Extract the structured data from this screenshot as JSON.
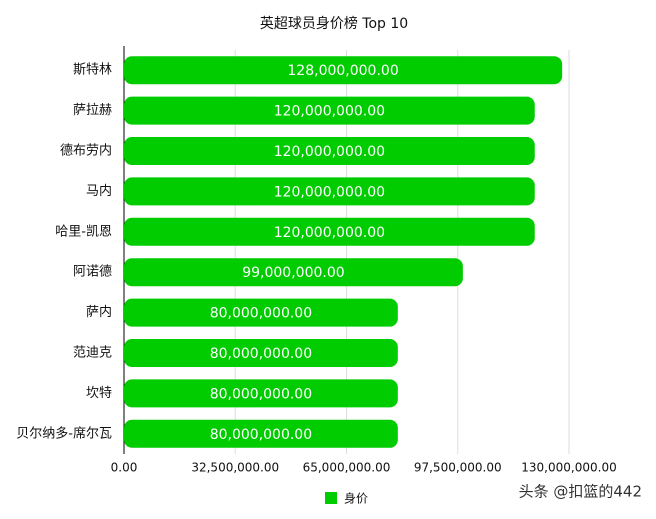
{
  "chart_data": {
    "type": "hbar",
    "title": "英超球员身价榜 Top 10",
    "categories": [
      "斯特林",
      "萨拉赫",
      "德布劳内",
      "马内",
      "哈里-凯恩",
      "阿诺德",
      "萨内",
      "范迪克",
      "坎特",
      "贝尔纳多-席尔瓦"
    ],
    "series": [
      {
        "name": "身价",
        "color": "#00cc00",
        "values": [
          128000000,
          120000000,
          120000000,
          120000000,
          120000000,
          99000000,
          80000000,
          80000000,
          80000000,
          80000000
        ],
        "value_labels": [
          "128,000,000.00",
          "120,000,000.00",
          "120,000,000.00",
          "120,000,000.00",
          "120,000,000.00",
          "99,000,000.00",
          "80,000,000.00",
          "80,000,000.00",
          "80,000,000.00",
          "80,000,000.00"
        ]
      }
    ],
    "xlim": [
      0,
      130000000
    ],
    "xticks": [
      {
        "value": 0,
        "label": "0.00"
      },
      {
        "value": 32500000,
        "label": "32,500,000.00"
      },
      {
        "value": 65000000,
        "label": "65,000,000.00"
      },
      {
        "value": 97500000,
        "label": "97,500,000.00"
      },
      {
        "value": 130000000,
        "label": "130,000,000.00"
      }
    ],
    "grid": true,
    "watermark": "头条 @扣篮的442"
  }
}
